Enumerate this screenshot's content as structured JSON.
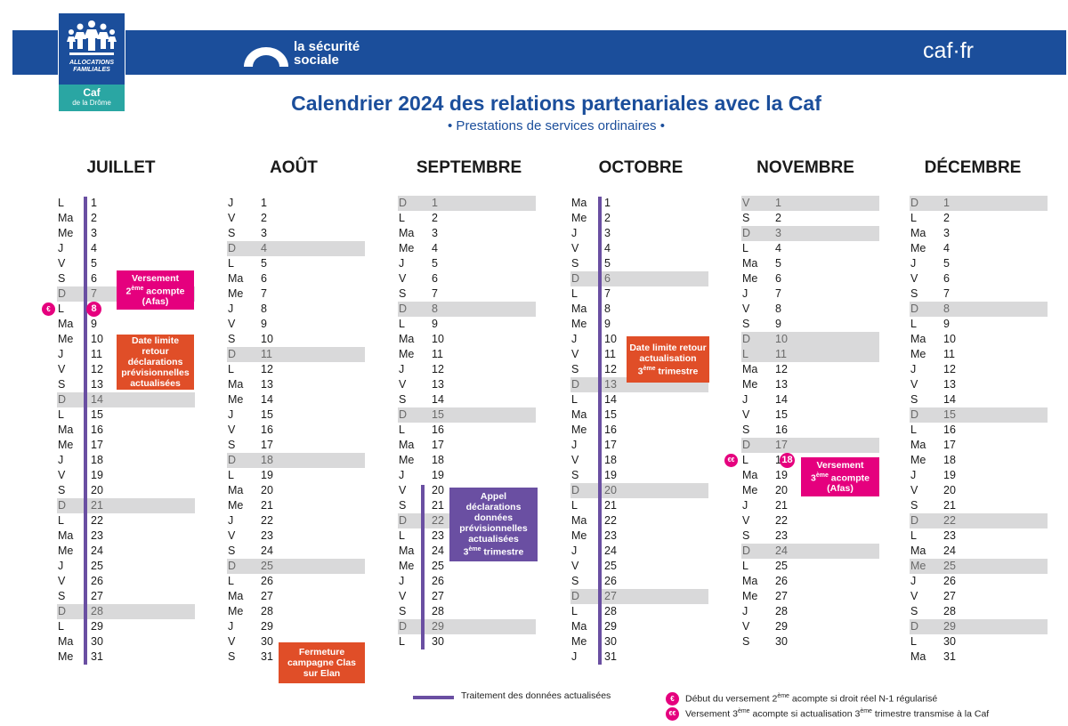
{
  "header": {
    "caf_logo": {
      "brand_line1": "ALLOCATIONS",
      "brand_line2": "FAMILIALES",
      "name": "Caf",
      "department": "de la Drôme"
    },
    "secu_logo": {
      "line1": "la sécurité",
      "line2": "sociale"
    },
    "caf_site": "caf·fr",
    "title": "Calendrier 2024 des relations partenariales avec la Caf",
    "subtitle": "• Prestations de services ordinaires •"
  },
  "months": [
    {
      "name": "JUILLET",
      "days": [
        {
          "wd": "L",
          "d": "1"
        },
        {
          "wd": "Ma",
          "d": "2"
        },
        {
          "wd": "Me",
          "d": "3"
        },
        {
          "wd": "J",
          "d": "4"
        },
        {
          "wd": "V",
          "d": "5"
        },
        {
          "wd": "S",
          "d": "6"
        },
        {
          "wd": "D",
          "d": "7"
        },
        {
          "wd": "L",
          "d": "8"
        },
        {
          "wd": "Ma",
          "d": "9"
        },
        {
          "wd": "Me",
          "d": "10"
        },
        {
          "wd": "J",
          "d": "11"
        },
        {
          "wd": "V",
          "d": "12"
        },
        {
          "wd": "S",
          "d": "13"
        },
        {
          "wd": "D",
          "d": "14"
        },
        {
          "wd": "L",
          "d": "15"
        },
        {
          "wd": "Ma",
          "d": "16"
        },
        {
          "wd": "Me",
          "d": "17"
        },
        {
          "wd": "J",
          "d": "18"
        },
        {
          "wd": "V",
          "d": "19"
        },
        {
          "wd": "S",
          "d": "20"
        },
        {
          "wd": "D",
          "d": "21"
        },
        {
          "wd": "L",
          "d": "22"
        },
        {
          "wd": "Ma",
          "d": "23"
        },
        {
          "wd": "Me",
          "d": "24"
        },
        {
          "wd": "J",
          "d": "25"
        },
        {
          "wd": "V",
          "d": "26"
        },
        {
          "wd": "S",
          "d": "27"
        },
        {
          "wd": "D",
          "d": "28"
        },
        {
          "wd": "L",
          "d": "29"
        },
        {
          "wd": "Ma",
          "d": "30"
        },
        {
          "wd": "Me",
          "d": "31"
        }
      ]
    },
    {
      "name": "AOÛT",
      "days": [
        {
          "wd": "J",
          "d": "1"
        },
        {
          "wd": "V",
          "d": "2"
        },
        {
          "wd": "S",
          "d": "3"
        },
        {
          "wd": "D",
          "d": "4"
        },
        {
          "wd": "L",
          "d": "5"
        },
        {
          "wd": "Ma",
          "d": "6"
        },
        {
          "wd": "Me",
          "d": "7"
        },
        {
          "wd": "J",
          "d": "8"
        },
        {
          "wd": "V",
          "d": "9"
        },
        {
          "wd": "S",
          "d": "10"
        },
        {
          "wd": "D",
          "d": "11"
        },
        {
          "wd": "L",
          "d": "12"
        },
        {
          "wd": "Ma",
          "d": "13"
        },
        {
          "wd": "Me",
          "d": "14"
        },
        {
          "wd": "J",
          "d": "15"
        },
        {
          "wd": "V",
          "d": "16"
        },
        {
          "wd": "S",
          "d": "17"
        },
        {
          "wd": "D",
          "d": "18"
        },
        {
          "wd": "L",
          "d": "19"
        },
        {
          "wd": "Ma",
          "d": "20"
        },
        {
          "wd": "Me",
          "d": "21"
        },
        {
          "wd": "J",
          "d": "22"
        },
        {
          "wd": "V",
          "d": "23"
        },
        {
          "wd": "S",
          "d": "24"
        },
        {
          "wd": "D",
          "d": "25"
        },
        {
          "wd": "L",
          "d": "26"
        },
        {
          "wd": "Ma",
          "d": "27"
        },
        {
          "wd": "Me",
          "d": "28"
        },
        {
          "wd": "J",
          "d": "29"
        },
        {
          "wd": "V",
          "d": "30"
        },
        {
          "wd": "S",
          "d": "31"
        }
      ]
    },
    {
      "name": "SEPTEMBRE",
      "days": [
        {
          "wd": "D",
          "d": "1"
        },
        {
          "wd": "L",
          "d": "2"
        },
        {
          "wd": "Ma",
          "d": "3"
        },
        {
          "wd": "Me",
          "d": "4"
        },
        {
          "wd": "J",
          "d": "5"
        },
        {
          "wd": "V",
          "d": "6"
        },
        {
          "wd": "S",
          "d": "7"
        },
        {
          "wd": "D",
          "d": "8"
        },
        {
          "wd": "L",
          "d": "9"
        },
        {
          "wd": "Ma",
          "d": "10"
        },
        {
          "wd": "Me",
          "d": "11"
        },
        {
          "wd": "J",
          "d": "12"
        },
        {
          "wd": "V",
          "d": "13"
        },
        {
          "wd": "S",
          "d": "14"
        },
        {
          "wd": "D",
          "d": "15"
        },
        {
          "wd": "L",
          "d": "16"
        },
        {
          "wd": "Ma",
          "d": "17"
        },
        {
          "wd": "Me",
          "d": "18"
        },
        {
          "wd": "J",
          "d": "19"
        },
        {
          "wd": "V",
          "d": "20"
        },
        {
          "wd": "S",
          "d": "21"
        },
        {
          "wd": "D",
          "d": "22"
        },
        {
          "wd": "L",
          "d": "23"
        },
        {
          "wd": "Ma",
          "d": "24"
        },
        {
          "wd": "Me",
          "d": "25"
        },
        {
          "wd": "J",
          "d": "26"
        },
        {
          "wd": "V",
          "d": "27"
        },
        {
          "wd": "S",
          "d": "28"
        },
        {
          "wd": "D",
          "d": "29"
        },
        {
          "wd": "L",
          "d": "30"
        }
      ]
    },
    {
      "name": "OCTOBRE",
      "days": [
        {
          "wd": "Ma",
          "d": "1"
        },
        {
          "wd": "Me",
          "d": "2"
        },
        {
          "wd": "J",
          "d": "3"
        },
        {
          "wd": "V",
          "d": "4"
        },
        {
          "wd": "S",
          "d": "5"
        },
        {
          "wd": "D",
          "d": "6"
        },
        {
          "wd": "L",
          "d": "7"
        },
        {
          "wd": "Ma",
          "d": "8"
        },
        {
          "wd": "Me",
          "d": "9"
        },
        {
          "wd": "J",
          "d": "10"
        },
        {
          "wd": "V",
          "d": "11"
        },
        {
          "wd": "S",
          "d": "12"
        },
        {
          "wd": "D",
          "d": "13"
        },
        {
          "wd": "L",
          "d": "14"
        },
        {
          "wd": "Ma",
          "d": "15"
        },
        {
          "wd": "Me",
          "d": "16"
        },
        {
          "wd": "J",
          "d": "17"
        },
        {
          "wd": "V",
          "d": "18"
        },
        {
          "wd": "S",
          "d": "19"
        },
        {
          "wd": "D",
          "d": "20"
        },
        {
          "wd": "L",
          "d": "21"
        },
        {
          "wd": "Ma",
          "d": "22"
        },
        {
          "wd": "Me",
          "d": "23"
        },
        {
          "wd": "J",
          "d": "24"
        },
        {
          "wd": "V",
          "d": "25"
        },
        {
          "wd": "S",
          "d": "26"
        },
        {
          "wd": "D",
          "d": "27"
        },
        {
          "wd": "L",
          "d": "28"
        },
        {
          "wd": "Ma",
          "d": "29"
        },
        {
          "wd": "Me",
          "d": "30"
        },
        {
          "wd": "J",
          "d": "31"
        }
      ]
    },
    {
      "name": "NOVEMBRE",
      "days": [
        {
          "wd": "V",
          "d": "1"
        },
        {
          "wd": "S",
          "d": "2"
        },
        {
          "wd": "D",
          "d": "3"
        },
        {
          "wd": "L",
          "d": "4"
        },
        {
          "wd": "Ma",
          "d": "5"
        },
        {
          "wd": "Me",
          "d": "6"
        },
        {
          "wd": "J",
          "d": "7"
        },
        {
          "wd": "V",
          "d": "8"
        },
        {
          "wd": "S",
          "d": "9"
        },
        {
          "wd": "D",
          "d": "10"
        },
        {
          "wd": "L",
          "d": "11"
        },
        {
          "wd": "Ma",
          "d": "12"
        },
        {
          "wd": "Me",
          "d": "13"
        },
        {
          "wd": "J",
          "d": "14"
        },
        {
          "wd": "V",
          "d": "15"
        },
        {
          "wd": "S",
          "d": "16"
        },
        {
          "wd": "D",
          "d": "17"
        },
        {
          "wd": "L",
          "d": "18"
        },
        {
          "wd": "Ma",
          "d": "19"
        },
        {
          "wd": "Me",
          "d": "20"
        },
        {
          "wd": "J",
          "d": "21"
        },
        {
          "wd": "V",
          "d": "22"
        },
        {
          "wd": "S",
          "d": "23"
        },
        {
          "wd": "D",
          "d": "24"
        },
        {
          "wd": "L",
          "d": "25"
        },
        {
          "wd": "Ma",
          "d": "26"
        },
        {
          "wd": "Me",
          "d": "27"
        },
        {
          "wd": "J",
          "d": "28"
        },
        {
          "wd": "V",
          "d": "29"
        },
        {
          "wd": "S",
          "d": "30"
        }
      ]
    },
    {
      "name": "DÉCEMBRE",
      "days": [
        {
          "wd": "D",
          "d": "1"
        },
        {
          "wd": "L",
          "d": "2"
        },
        {
          "wd": "Ma",
          "d": "3"
        },
        {
          "wd": "Me",
          "d": "4"
        },
        {
          "wd": "J",
          "d": "5"
        },
        {
          "wd": "V",
          "d": "6"
        },
        {
          "wd": "S",
          "d": "7"
        },
        {
          "wd": "D",
          "d": "8"
        },
        {
          "wd": "L",
          "d": "9"
        },
        {
          "wd": "Ma",
          "d": "10"
        },
        {
          "wd": "Me",
          "d": "11"
        },
        {
          "wd": "J",
          "d": "12"
        },
        {
          "wd": "V",
          "d": "13"
        },
        {
          "wd": "S",
          "d": "14"
        },
        {
          "wd": "D",
          "d": "15"
        },
        {
          "wd": "L",
          "d": "16"
        },
        {
          "wd": "Ma",
          "d": "17"
        },
        {
          "wd": "Me",
          "d": "18"
        },
        {
          "wd": "J",
          "d": "19"
        },
        {
          "wd": "V",
          "d": "20"
        },
        {
          "wd": "S",
          "d": "21"
        },
        {
          "wd": "D",
          "d": "22"
        },
        {
          "wd": "L",
          "d": "23"
        },
        {
          "wd": "Ma",
          "d": "24"
        },
        {
          "wd": "Me",
          "d": "25"
        },
        {
          "wd": "J",
          "d": "26"
        },
        {
          "wd": "V",
          "d": "27"
        },
        {
          "wd": "S",
          "d": "28"
        },
        {
          "wd": "D",
          "d": "29"
        },
        {
          "wd": "L",
          "d": "30"
        },
        {
          "wd": "Ma",
          "d": "31"
        }
      ]
    }
  ],
  "highlights": {
    "holidays": {
      "nov_1": true,
      "nov_11": true,
      "dec_25": true
    },
    "circle_jul_8": "8",
    "circle_nov_18": "18",
    "euro_single": "€",
    "euro_double": "€€"
  },
  "notes": {
    "versement2": {
      "l1": "Versement",
      "l2_num": "2",
      "l2_sup": "ème",
      "l2_rest": " acompte",
      "l3": "(Afas)"
    },
    "date_limite_jul": {
      "l1": "Date limite retour",
      "l2": "déclarations",
      "l3": "prévisionnelles",
      "l4": "actualisées"
    },
    "fermeture": {
      "l1": "Fermeture",
      "l2": "campagne Clas",
      "l3": "sur Elan"
    },
    "appel": {
      "l1": "Appel déclarations",
      "l2": "données",
      "l3": "prévisionnelles",
      "l4": "actualisées",
      "l5_num": "3",
      "l5_sup": "ème",
      "l5_rest": " trimestre"
    },
    "date_limite_oct": {
      "l1": "Date limite retour",
      "l2": "actualisation",
      "l3_num": "3",
      "l3_sup": "ème",
      "l3_rest": " trimestre"
    },
    "versement3": {
      "l1": "Versement",
      "l2_num": "3",
      "l2_sup": "ème",
      "l2_rest": " acompte",
      "l3": "(Afas)"
    }
  },
  "legend": {
    "line_label": "Traitement des données actualisées",
    "euro1": {
      "a": "Début du versement 2",
      "sup": "ème",
      "b": " acompte si droit réel N-1 régularisé"
    },
    "euro2": {
      "a": "Versement 3",
      "sup": "ème",
      "b": " acompte si actualisation 3",
      "sup2": "ème",
      "c": " trimestre transmise à la Caf"
    }
  },
  "colors": {
    "blue": "#1b4e9b",
    "purple": "#6a4fa2",
    "pink": "#e5007e",
    "orange": "#e04e28",
    "weekend_gray": "#d9d9da"
  }
}
